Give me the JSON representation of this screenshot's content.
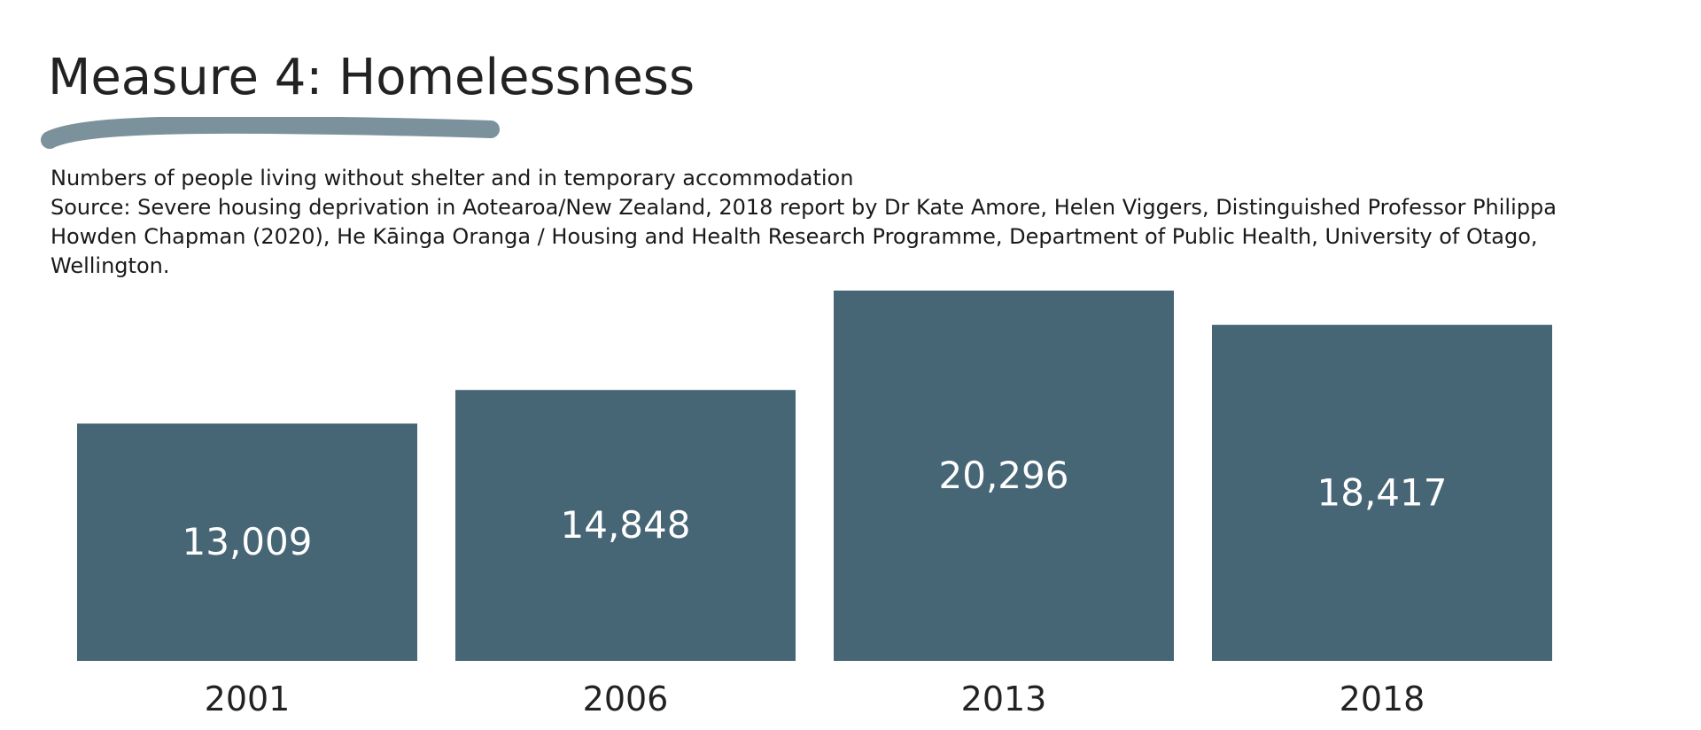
{
  "title": "Measure 4: Homelessness",
  "description": "Numbers of people living without shelter and in temporary accommodation",
  "source": "Source: Severe housing deprivation in Aotearoa/New Zealand, 2018 report by Dr Kate Amore, Helen Viggers, Distinguished Professor Philippa Howden Chapman (2020), He Kāinga Oranga / Housing and Health Research Programme, Department of Public Health, University of Otago, Wellington.",
  "colors": {
    "bar": "#466676",
    "underline": "#7b929c",
    "bar_label": "#ffffff"
  },
  "chart_data": {
    "type": "bar",
    "title": "Measure 4: Homelessness",
    "categories": [
      "2001",
      "2006",
      "2013",
      "2018"
    ],
    "values": [
      13009,
      14848,
      20296,
      18417
    ],
    "value_labels": [
      "13,009",
      "14,848",
      "20,296",
      "18,417"
    ],
    "xlabel": "",
    "ylabel": "",
    "grid": false,
    "legend": "none"
  }
}
